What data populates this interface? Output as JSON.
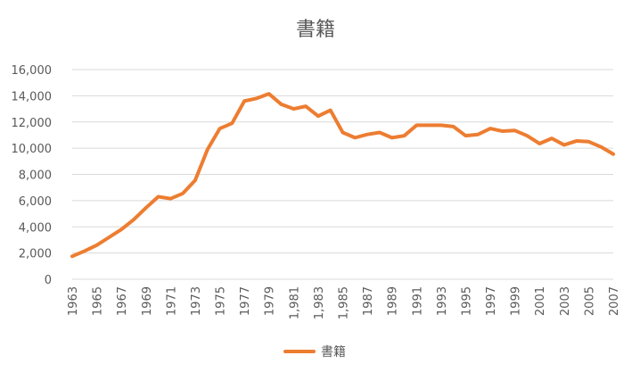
{
  "chart_data": {
    "type": "line",
    "title": "書籍",
    "xlabel": "",
    "ylabel": "",
    "ylim": [
      0,
      16000
    ],
    "yticks": [
      "0",
      "2,000",
      "4,000",
      "6,000",
      "8,000",
      "10,000",
      "12,000",
      "14,000",
      "16,000"
    ],
    "x": [
      1963,
      1964,
      1965,
      1966,
      1967,
      1968,
      1969,
      1970,
      1971,
      1972,
      1973,
      1974,
      1975,
      1976,
      1977,
      1978,
      1979,
      1980,
      1981,
      1982,
      1983,
      1984,
      1985,
      1986,
      1987,
      1988,
      1989,
      1990,
      1991,
      1992,
      1993,
      1994,
      1995,
      1996,
      1997,
      1998,
      1999,
      2000,
      2001,
      2002,
      2003,
      2004,
      2005,
      2006,
      2007
    ],
    "xtick_labels": [
      "1963",
      "1965",
      "1967",
      "1969",
      "1971",
      "1973",
      "1975",
      "1977",
      "1979",
      "1,981",
      "1,983",
      "1,985",
      "1987",
      "1989",
      "1991",
      "1993",
      "1995",
      "1997",
      "1999",
      "2001",
      "2003",
      "2005",
      "2007"
    ],
    "series": [
      {
        "name": "書籍",
        "color": "#ED7D31",
        "values": [
          1750,
          2150,
          2600,
          3200,
          3800,
          4550,
          5450,
          6300,
          6150,
          6550,
          7550,
          9900,
          11500,
          11900,
          13600,
          13800,
          14150,
          13350,
          13000,
          13200,
          12450,
          12900,
          11200,
          10800,
          11050,
          11200,
          10800,
          10950,
          11750,
          11750,
          11750,
          11650,
          10950,
          11050,
          11500,
          11300,
          11350,
          10950,
          10350,
          10750,
          10250,
          10550,
          10500,
          10100,
          9550
        ]
      }
    ],
    "grid": true,
    "legend": "bottom"
  }
}
